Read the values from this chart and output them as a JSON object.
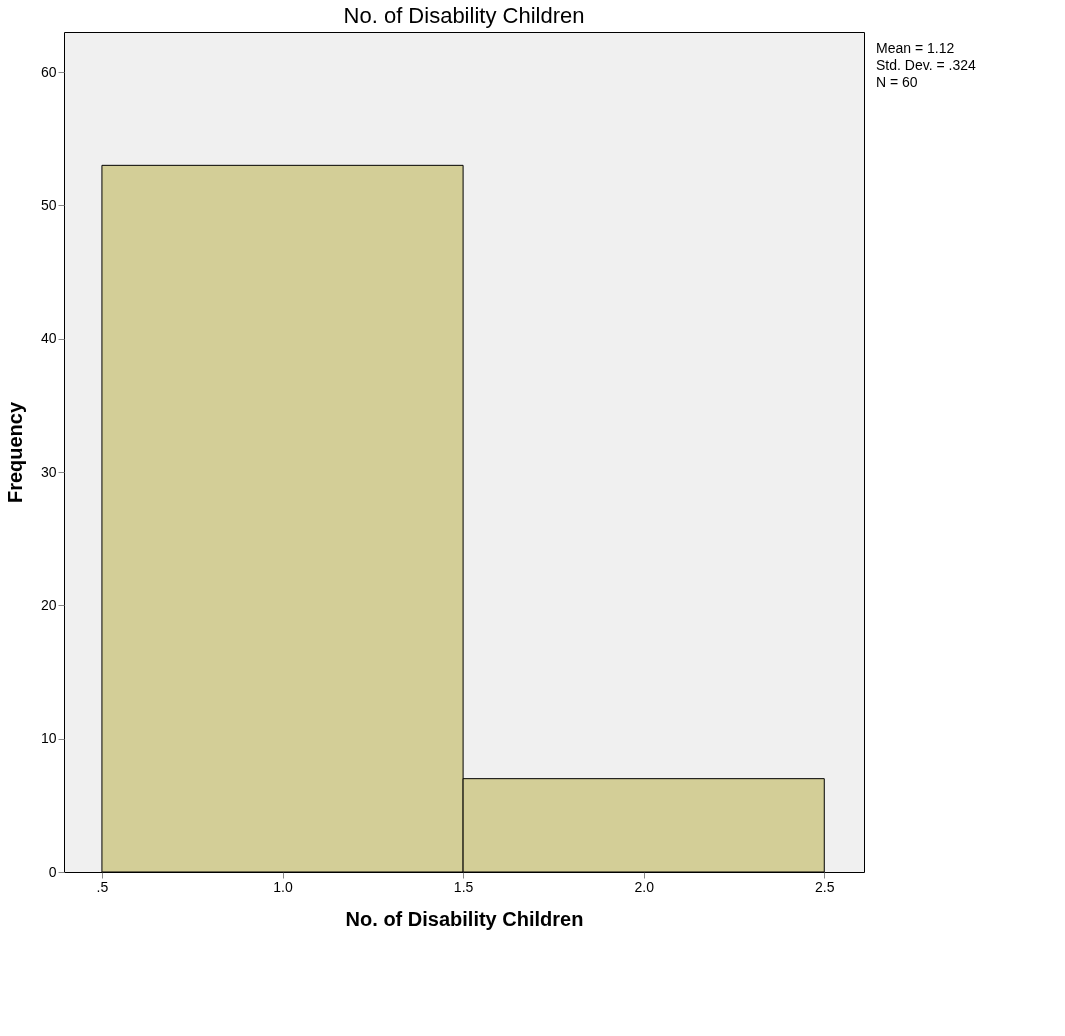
{
  "chart_data": {
    "type": "histogram",
    "title": "No. of Disability Children",
    "xlabel": "No. of Disability Children",
    "ylabel": "Frequency",
    "bins": [
      0.5,
      1.5,
      2.5
    ],
    "values": [
      53,
      7
    ],
    "color": "#d3ce97",
    "xlim": [
      0.395,
      2.61
    ],
    "ylim": [
      0,
      63
    ],
    "xticks": [
      {
        "value": 0.5,
        "label": ".5"
      },
      {
        "value": 1.0,
        "label": "1.0"
      },
      {
        "value": 1.5,
        "label": "1.5"
      },
      {
        "value": 2.0,
        "label": "2.0"
      },
      {
        "value": 2.5,
        "label": "2.5"
      }
    ],
    "yticks": [
      0,
      10,
      20,
      30,
      40,
      50,
      60
    ],
    "grid": false,
    "annotations": [
      "Mean = 1.12",
      "Std. Dev. = .324",
      "N = 60"
    ]
  }
}
